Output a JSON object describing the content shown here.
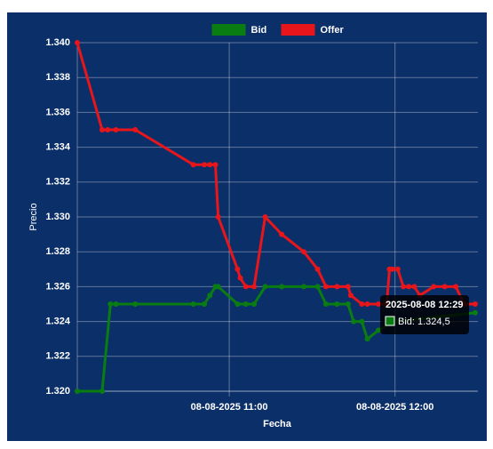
{
  "chart_data": {
    "type": "line",
    "legend": "top",
    "grid": true,
    "x_label": "Fecha",
    "y_label": "Precio",
    "xlim": [
      "2025-08-08 10:05",
      "2025-08-08 12:30"
    ],
    "xticks": [
      {
        "value": "2025-08-08 11:00",
        "label": "08-08-2025 11:00"
      },
      {
        "value": "2025-08-08 12:00",
        "label": "08-08-2025 12:00"
      }
    ],
    "ylim": [
      1.32,
      1.34
    ],
    "yticks": [
      {
        "value": 1.32,
        "label": "1.320"
      },
      {
        "value": 1.322,
        "label": "1.322"
      },
      {
        "value": 1.324,
        "label": "1.324"
      },
      {
        "value": 1.326,
        "label": "1.326"
      },
      {
        "value": 1.328,
        "label": "1.328"
      },
      {
        "value": 1.33,
        "label": "1.330"
      },
      {
        "value": 1.332,
        "label": "1.332"
      },
      {
        "value": 1.334,
        "label": "1.334"
      },
      {
        "value": 1.336,
        "label": "1.336"
      },
      {
        "value": 1.338,
        "label": "1.338"
      },
      {
        "value": 1.34,
        "label": "1.340"
      }
    ],
    "series": [
      {
        "name": "Bid",
        "color": "#0a7d12",
        "x": [
          "2025-08-08 10:05",
          "2025-08-08 10:14",
          "2025-08-08 10:17",
          "2025-08-08 10:19",
          "2025-08-08 10:26",
          "2025-08-08 10:47",
          "2025-08-08 10:51",
          "2025-08-08 10:53",
          "2025-08-08 10:55",
          "2025-08-08 10:56",
          "2025-08-08 11:03",
          "2025-08-08 11:06",
          "2025-08-08 11:09",
          "2025-08-08 11:13",
          "2025-08-08 11:19",
          "2025-08-08 11:27",
          "2025-08-08 11:32",
          "2025-08-08 11:35",
          "2025-08-08 11:39",
          "2025-08-08 11:43",
          "2025-08-08 11:45",
          "2025-08-08 11:48",
          "2025-08-08 11:50",
          "2025-08-08 11:54",
          "2025-08-08 12:00",
          "2025-08-08 12:29"
        ],
        "values": [
          1.32,
          1.32,
          1.325,
          1.325,
          1.325,
          1.325,
          1.325,
          1.3255,
          1.326,
          1.326,
          1.325,
          1.325,
          1.325,
          1.326,
          1.326,
          1.326,
          1.326,
          1.325,
          1.325,
          1.325,
          1.324,
          1.324,
          1.323,
          1.3235,
          1.324,
          1.3245
        ]
      },
      {
        "name": "Offer",
        "color": "#e8161b",
        "x": [
          "2025-08-08 10:05",
          "2025-08-08 10:14",
          "2025-08-08 10:16",
          "2025-08-08 10:19",
          "2025-08-08 10:26",
          "2025-08-08 10:47",
          "2025-08-08 10:51",
          "2025-08-08 10:53",
          "2025-08-08 10:55",
          "2025-08-08 10:56",
          "2025-08-08 11:03",
          "2025-08-08 11:04",
          "2025-08-08 11:06",
          "2025-08-08 11:09",
          "2025-08-08 11:13",
          "2025-08-08 11:19",
          "2025-08-08 11:27",
          "2025-08-08 11:32",
          "2025-08-08 11:35",
          "2025-08-08 11:39",
          "2025-08-08 11:43",
          "2025-08-08 11:44",
          "2025-08-08 11:48",
          "2025-08-08 11:50",
          "2025-08-08 11:54",
          "2025-08-08 11:57",
          "2025-08-08 11:58",
          "2025-08-08 11:59",
          "2025-08-08 12:01",
          "2025-08-08 12:03",
          "2025-08-08 12:05",
          "2025-08-08 12:07",
          "2025-08-08 12:09",
          "2025-08-08 12:14",
          "2025-08-08 12:18",
          "2025-08-08 12:22",
          "2025-08-08 12:25",
          "2025-08-08 12:29"
        ],
        "values": [
          1.34,
          1.335,
          1.335,
          1.335,
          1.335,
          1.333,
          1.333,
          1.333,
          1.333,
          1.33,
          1.327,
          1.3265,
          1.326,
          1.326,
          1.33,
          1.329,
          1.328,
          1.327,
          1.326,
          1.326,
          1.326,
          1.3255,
          1.325,
          1.325,
          1.325,
          1.325,
          1.327,
          1.327,
          1.327,
          1.326,
          1.326,
          1.326,
          1.3255,
          1.326,
          1.326,
          1.326,
          1.325,
          1.325
        ]
      }
    ],
    "tooltip": {
      "title": "2025-08-08 12:29",
      "label": "Bid: 1.324,5"
    }
  }
}
